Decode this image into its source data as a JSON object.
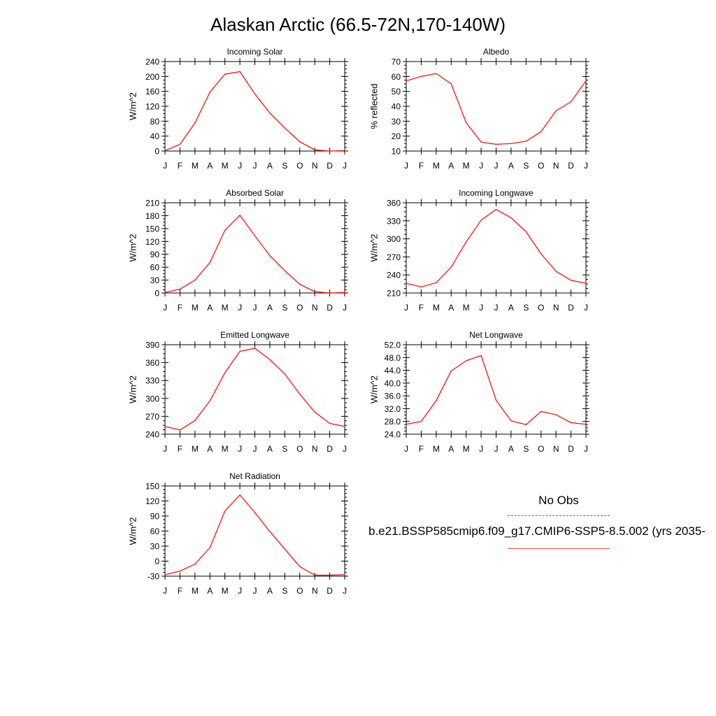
{
  "page": {
    "title": "Alaskan Arctic (66.5-72N,170-140W)"
  },
  "legend": {
    "obs_label": "No Obs",
    "obs_line_color": "#5b5bff",
    "model_label": "b.e21.BSSP585cmip6.f09_g17.CMIP6-SSP5-8.5.002 (yrs 2035-",
    "model_line_color": "#ff0000"
  },
  "chart_data": [
    {
      "type": "line",
      "title": "Incoming Solar",
      "ylabel": "W/m^2",
      "x": [
        "J",
        "F",
        "M",
        "A",
        "M",
        "J",
        "J",
        "A",
        "S",
        "O",
        "N",
        "D",
        "J"
      ],
      "ylim": [
        0,
        240
      ],
      "yticks": [
        "0",
        "40",
        "80",
        "120",
        "160",
        "200",
        "240"
      ],
      "series": [
        {
          "values": [
            1,
            18,
            75,
            158,
            206,
            213,
            153,
            102,
            62,
            25,
            3,
            0,
            1
          ]
        }
      ]
    },
    {
      "type": "line",
      "title": "Albedo",
      "ylabel": "% reflected",
      "x": [
        "J",
        "F",
        "M",
        "A",
        "M",
        "J",
        "J",
        "A",
        "S",
        "O",
        "N",
        "D",
        "J"
      ],
      "ylim": [
        10,
        70
      ],
      "yticks": [
        "10",
        "20",
        "30",
        "40",
        "50",
        "60",
        "70"
      ],
      "series": [
        {
          "values": [
            57,
            60,
            62,
            55,
            29,
            16,
            14.5,
            15,
            16.5,
            23,
            37,
            43,
            57
          ]
        }
      ]
    },
    {
      "type": "line",
      "title": "Absorbed Solar",
      "ylabel": "W/m^2",
      "x": [
        "J",
        "F",
        "M",
        "A",
        "M",
        "J",
        "J",
        "A",
        "S",
        "O",
        "N",
        "D",
        "J"
      ],
      "ylim": [
        0,
        210
      ],
      "yticks": [
        "0",
        "30",
        "60",
        "90",
        "120",
        "150",
        "180",
        "210"
      ],
      "series": [
        {
          "values": [
            1,
            9,
            30,
            71,
            146,
            181,
            133,
            87,
            52,
            20,
            3,
            0,
            1
          ]
        }
      ]
    },
    {
      "type": "line",
      "title": "Incoming Longwave",
      "ylabel": "W/m^2",
      "x": [
        "J",
        "F",
        "M",
        "A",
        "M",
        "J",
        "J",
        "A",
        "S",
        "O",
        "N",
        "D",
        "J"
      ],
      "ylim": [
        210,
        360
      ],
      "yticks": [
        "210",
        "240",
        "270",
        "300",
        "330",
        "360"
      ],
      "series": [
        {
          "values": [
            226,
            220,
            227,
            253,
            295,
            331,
            349,
            335,
            312,
            275,
            246,
            231,
            226
          ]
        }
      ]
    },
    {
      "type": "line",
      "title": "Emitted Longwave",
      "ylabel": "W/m^2",
      "x": [
        "J",
        "F",
        "M",
        "A",
        "M",
        "J",
        "J",
        "A",
        "S",
        "O",
        "N",
        "D",
        "J"
      ],
      "ylim": [
        240,
        390
      ],
      "yticks": [
        "240",
        "270",
        "300",
        "330",
        "360",
        "390"
      ],
      "series": [
        {
          "values": [
            253,
            247,
            263,
            296,
            343,
            379,
            384,
            365,
            341,
            307,
            277,
            258,
            253
          ]
        }
      ]
    },
    {
      "type": "line",
      "title": "Net Longwave",
      "ylabel": "W/m^2",
      "x": [
        "J",
        "F",
        "M",
        "A",
        "M",
        "J",
        "J",
        "A",
        "S",
        "O",
        "N",
        "D",
        "J"
      ],
      "ylim": [
        24,
        52
      ],
      "yticks": [
        "24.0",
        "28.0",
        "32.0",
        "36.0",
        "40.0",
        "44.0",
        "48.0",
        "52.0"
      ],
      "series": [
        {
          "values": [
            27.1,
            28.0,
            34.5,
            43.8,
            47.0,
            48.6,
            34.6,
            28.2,
            27.0,
            31.1,
            30.1,
            27.6,
            27.1
          ]
        }
      ]
    },
    {
      "type": "line",
      "title": "Net Radiation",
      "ylabel": "W/m^2",
      "x": [
        "J",
        "F",
        "M",
        "A",
        "M",
        "J",
        "J",
        "A",
        "S",
        "O",
        "N",
        "D",
        "J"
      ],
      "ylim": [
        -30,
        150
      ],
      "yticks": [
        "-30",
        "0",
        "30",
        "60",
        "90",
        "120",
        "150"
      ],
      "series": [
        {
          "values": [
            -27,
            -20,
            -6,
            27,
            100,
            132,
            97,
            59,
            24,
            -11,
            -28,
            -28,
            -27
          ]
        }
      ]
    }
  ]
}
